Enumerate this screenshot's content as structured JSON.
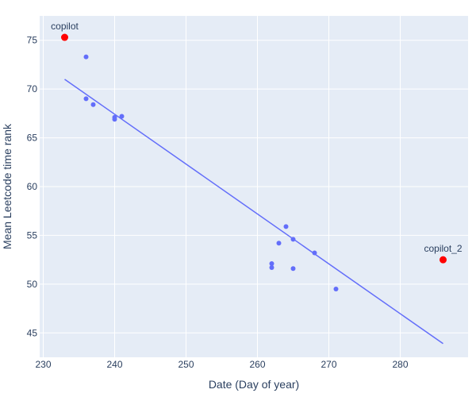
{
  "chart_data": {
    "type": "scatter",
    "xlabel": "Date (Day of year)",
    "ylabel": "Mean Leetcode time rank",
    "xlim": [
      229.5,
      289.5
    ],
    "ylim": [
      42.5,
      77.5
    ],
    "xticks": [
      230,
      240,
      250,
      260,
      270,
      280
    ],
    "yticks": [
      45,
      50,
      55,
      60,
      65,
      70,
      75
    ],
    "grid": true,
    "background": "#e5ecf6",
    "series": [
      {
        "kind": "points",
        "color": "#636efa",
        "x": [
          236,
          236,
          237,
          240,
          240,
          241,
          262,
          262,
          263,
          264,
          265,
          265,
          268,
          271
        ],
        "y": [
          73.3,
          69.0,
          68.4,
          67.1,
          66.9,
          67.2,
          52.1,
          51.7,
          54.2,
          55.9,
          54.6,
          51.6,
          53.2,
          49.5
        ]
      },
      {
        "kind": "line",
        "color": "#636efa",
        "x": [
          233,
          286
        ],
        "y": [
          71.0,
          43.9
        ]
      },
      {
        "kind": "highlight",
        "color": "#ff0000",
        "x": [
          233,
          286
        ],
        "y": [
          75.3,
          52.5
        ],
        "labels": [
          "copilot",
          "copilot_2"
        ]
      }
    ]
  }
}
